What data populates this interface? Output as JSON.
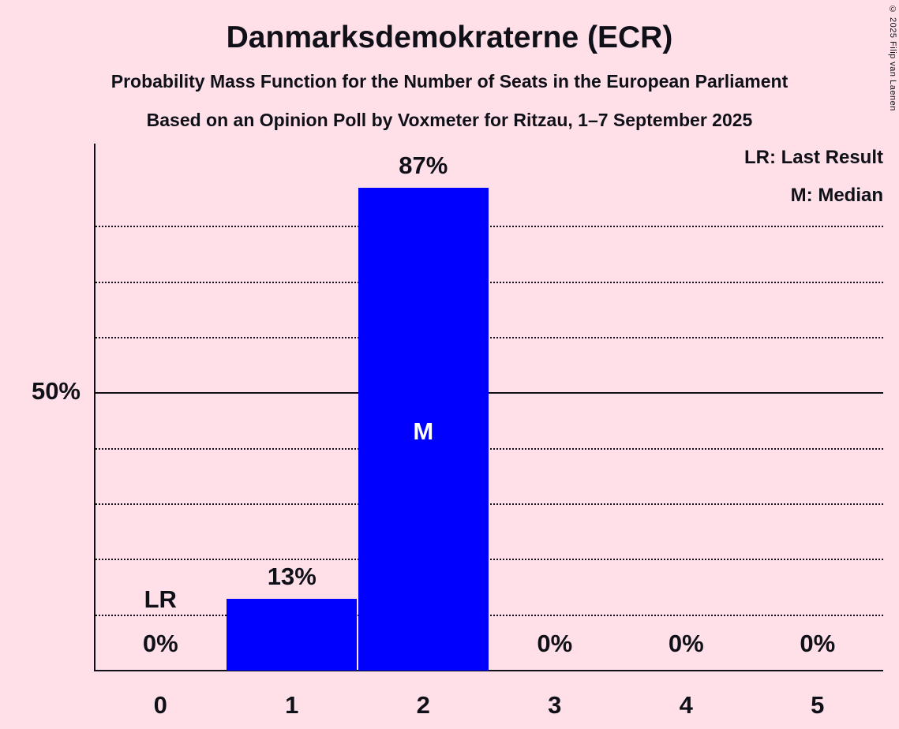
{
  "title": "Danmarksdemokraterne (ECR)",
  "subtitle1": "Probability Mass Function for the Number of Seats in the European Parliament",
  "subtitle2": "Based on an Opinion Poll by Voxmeter for Ritzau, 1–7 September 2025",
  "legend": {
    "lr": "LR: Last Result",
    "m": "M: Median"
  },
  "y_axis": {
    "label_50": "50%"
  },
  "copyright": "© 2025 Filip van Laenen",
  "colors": {
    "background": "#ffe0e8",
    "text": "#101018",
    "bar": "#0000ff",
    "median_label": "#ffffff"
  },
  "chart_data": {
    "type": "bar",
    "categories": [
      "0",
      "1",
      "2",
      "3",
      "4",
      "5"
    ],
    "values": [
      0,
      13,
      87,
      0,
      0,
      0
    ],
    "value_labels": [
      "0%",
      "13%",
      "87%",
      "0%",
      "0%",
      "0%"
    ],
    "title": "Danmarksdemokraterne (ECR)",
    "xlabel": "",
    "ylabel": "",
    "ylim": [
      0,
      95
    ],
    "gridlines_percent": [
      10,
      20,
      30,
      40,
      50,
      60,
      70,
      80
    ],
    "solid_line_percent": 50,
    "grid": true,
    "legend_position": "top-right",
    "median_category": "2",
    "last_result_category": "0",
    "annotations": {
      "median": "M",
      "last_result": "LR"
    }
  }
}
